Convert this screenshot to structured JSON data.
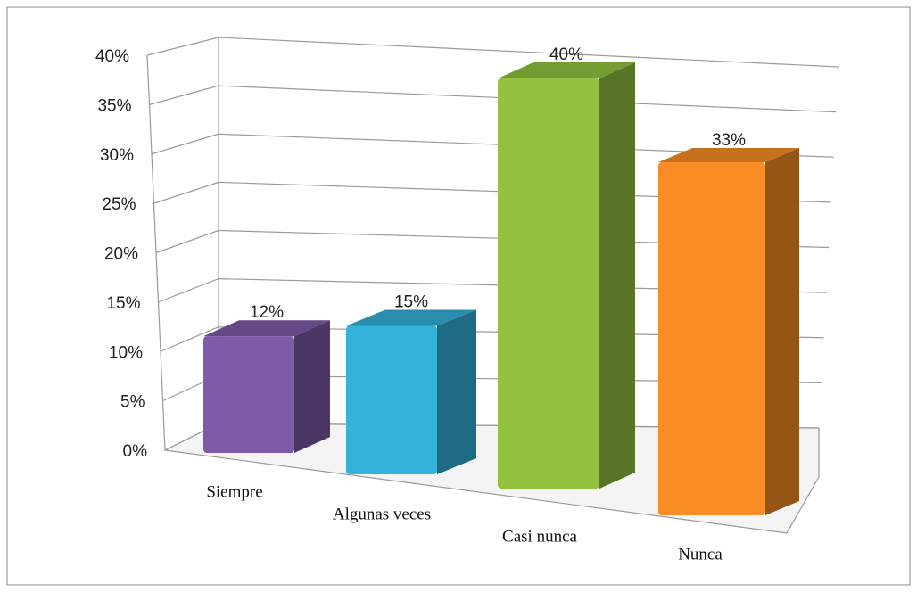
{
  "chart_data": {
    "type": "bar3d",
    "categories": [
      "Siempre",
      "Algunas veces",
      "Casi nunca",
      "Nunca"
    ],
    "values": [
      12,
      15,
      40,
      33
    ],
    "value_labels": [
      "12%",
      "15%",
      "40%",
      "33%"
    ],
    "colors": [
      "#7f5aa8",
      "#33b2da",
      "#92c240",
      "#f98d24"
    ],
    "ylim": [
      0,
      40
    ],
    "yticks": [
      {
        "value": 0,
        "label": "0%"
      },
      {
        "value": 5,
        "label": "5%"
      },
      {
        "value": 10,
        "label": "10%"
      },
      {
        "value": 15,
        "label": "15%"
      },
      {
        "value": 20,
        "label": "20%"
      },
      {
        "value": 25,
        "label": "25%"
      },
      {
        "value": 30,
        "label": "30%"
      },
      {
        "value": 35,
        "label": "35%"
      },
      {
        "value": 40,
        "label": "40%"
      }
    ],
    "grid": true
  }
}
